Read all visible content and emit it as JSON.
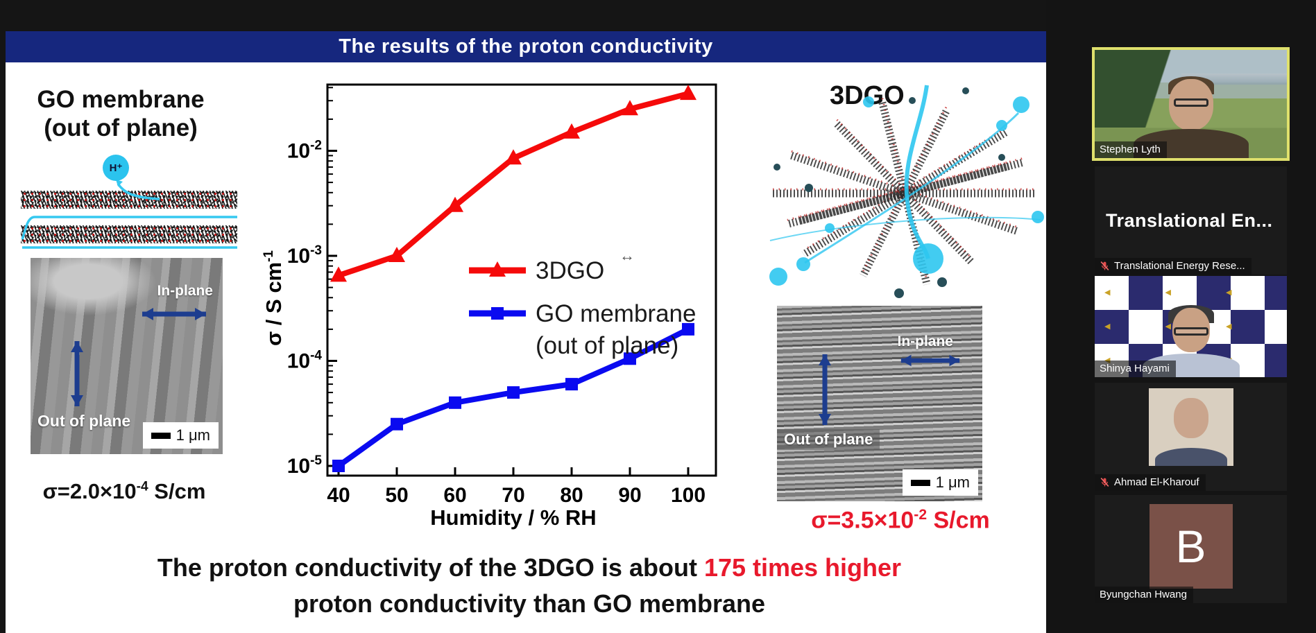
{
  "slide": {
    "title": "The results of the proton conductivity",
    "title_bar_color": "#16277e",
    "left_panel": {
      "heading_line1": "GO membrane",
      "heading_line2": "(out of plane)",
      "proton_label": "H⁺",
      "sem": {
        "in_plane": "In-plane",
        "out_of_plane": "Out of plane",
        "scale": "1 μm"
      },
      "sigma": {
        "base": "σ=2.0×10",
        "exponent": "-4",
        "unit": " S/cm"
      }
    },
    "right_panel": {
      "heading": "3DGO",
      "sem": {
        "in_plane": "In-plane",
        "out_of_plane": "Out of plane",
        "scale": "1 μm"
      },
      "sigma": {
        "base": "σ=3.5×10",
        "exponent": "-2",
        "unit": " S/cm"
      },
      "sigma_color": "#e8192c"
    },
    "caption": {
      "lead": "The proton conductivity of the 3DGO is about ",
      "highlight": "175 times higher",
      "highlight_color": "#e8192c",
      "line2": "proton conductivity than GO membrane"
    },
    "cursor_artifact": "↔"
  },
  "chart_data": {
    "type": "line",
    "x": [
      40,
      50,
      60,
      70,
      80,
      90,
      100
    ],
    "series": [
      {
        "name": "3DGO",
        "color": "#f50a0a",
        "marker": "triangle",
        "values": [
          0.00065,
          0.001,
          0.003,
          0.0085,
          0.015,
          0.025,
          0.035
        ]
      },
      {
        "name": "GO membrane (out of plane)",
        "color": "#0a0af0",
        "marker": "square",
        "values": [
          1e-05,
          2.5e-05,
          4e-05,
          5e-05,
          6e-05,
          0.000105,
          0.0002
        ]
      }
    ],
    "title": "",
    "xlabel": "Humidity / % RH",
    "ylabel_base": "σ / S cm",
    "ylabel_exponent": "-1",
    "xlim": [
      40,
      100
    ],
    "ylim": [
      8e-06,
      0.043
    ],
    "yscale": "log",
    "ytick_exponents": [
      -2,
      -3,
      -4,
      -5
    ],
    "grid": false,
    "legend_position": "inside-middle",
    "legend": {
      "series1": "3DGO",
      "series2_line1": "GO membrane",
      "series2_line2": "(out of plane)"
    }
  },
  "sidebar": {
    "participants": [
      {
        "name": "Stephen Lyth",
        "variant": "scenery",
        "active": true,
        "muted": false,
        "display_text": "",
        "avatar_letter": ""
      },
      {
        "name": "Translational Energy Rese...",
        "variant": "text",
        "active": false,
        "muted": true,
        "display_text": "Translational  En...",
        "avatar_letter": ""
      },
      {
        "name": "Shinya Hayami",
        "variant": "checker",
        "active": false,
        "muted": false,
        "display_text": "",
        "avatar_letter": ""
      },
      {
        "name": "Ahmad El-Kharouf",
        "variant": "photo",
        "active": false,
        "muted": true,
        "display_text": "",
        "avatar_letter": ""
      },
      {
        "name": "Byungchan Hwang",
        "variant": "avatar",
        "active": false,
        "muted": false,
        "display_text": "",
        "avatar_letter": "B"
      }
    ],
    "tile_geometry": {
      "tops": [
        72,
        240,
        398,
        552,
        714
      ],
      "heights": [
        156,
        156,
        146,
        156,
        156
      ]
    }
  }
}
